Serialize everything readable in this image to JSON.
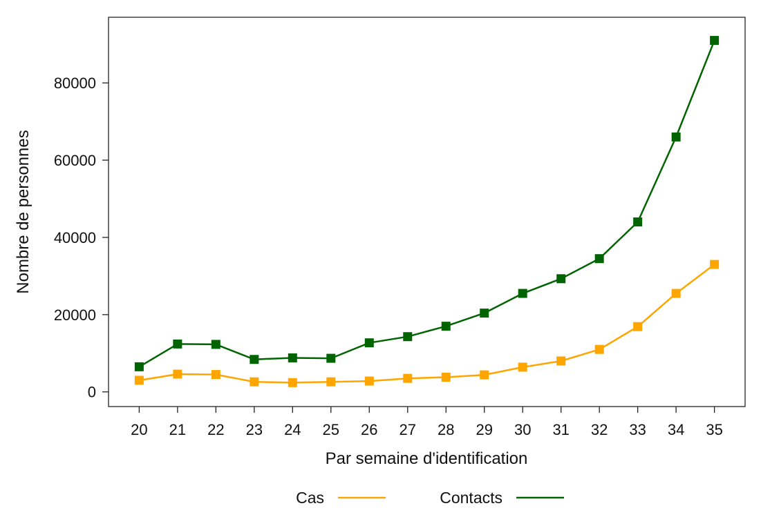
{
  "chart_data": {
    "type": "line",
    "title": "",
    "xlabel": "Par semaine d'identification",
    "ylabel": "Nombre de personnes",
    "x": [
      20,
      21,
      22,
      23,
      24,
      25,
      26,
      27,
      28,
      29,
      30,
      31,
      32,
      33,
      34,
      35
    ],
    "x_tick_labels": [
      "20",
      "21",
      "22",
      "23",
      "24",
      "25",
      "26",
      "27",
      "28",
      "29",
      "30",
      "31",
      "32",
      "33",
      "34",
      "35"
    ],
    "y_ticks": [
      0,
      20000,
      40000,
      60000,
      80000
    ],
    "y_tick_labels": [
      "0",
      "20000",
      "40000",
      "60000",
      "80000"
    ],
    "xlim": [
      19.2,
      35.8
    ],
    "ylim": [
      -3800,
      97000
    ],
    "grid": false,
    "legend_position": "bottom",
    "series": [
      {
        "name": "Cas",
        "color": "#FFA500",
        "marker": "square",
        "values": [
          3000,
          4600,
          4500,
          2600,
          2400,
          2600,
          2800,
          3500,
          3800,
          4400,
          6400,
          8000,
          11000,
          16900,
          25500,
          33000
        ]
      },
      {
        "name": "Contacts",
        "color": "#006400",
        "marker": "square",
        "values": [
          6500,
          12400,
          12300,
          8400,
          8800,
          8700,
          12700,
          14300,
          17000,
          20400,
          25500,
          29300,
          34500,
          44000,
          66000,
          91000
        ]
      }
    ]
  }
}
